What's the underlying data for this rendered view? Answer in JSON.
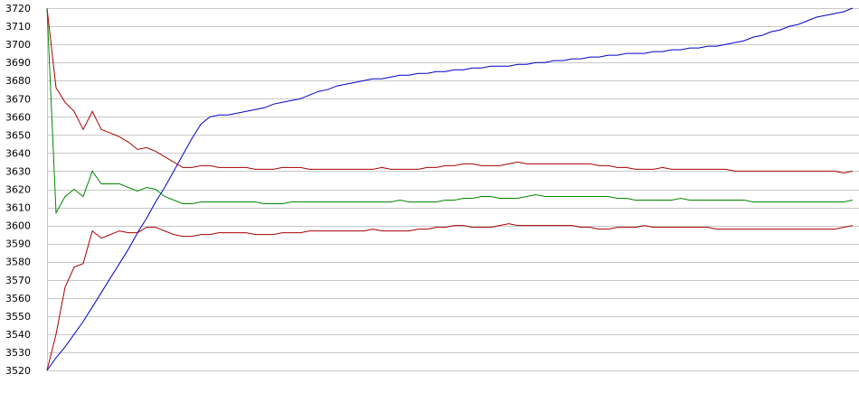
{
  "chart_data": {
    "type": "line",
    "title": "",
    "xlabel": "",
    "ylabel": "",
    "ylim": [
      3520,
      3720
    ],
    "yticks": [
      3520,
      3530,
      3540,
      3550,
      3560,
      3570,
      3580,
      3590,
      3600,
      3610,
      3620,
      3630,
      3640,
      3650,
      3660,
      3670,
      3680,
      3690,
      3700,
      3710,
      3720
    ],
    "grid": true,
    "legend": "none",
    "x": [
      0,
      1,
      2,
      3,
      4,
      5,
      6,
      7,
      8,
      9,
      10,
      11,
      12,
      13,
      14,
      15,
      16,
      17,
      18,
      19,
      20,
      21,
      22,
      23,
      24,
      25,
      26,
      27,
      28,
      29,
      30,
      31,
      32,
      33,
      34,
      35,
      36,
      37,
      38,
      39,
      40,
      41,
      42,
      43,
      44,
      45,
      46,
      47,
      48,
      49,
      50,
      51,
      52,
      53,
      54,
      55,
      56,
      57,
      58,
      59,
      60,
      61,
      62,
      63,
      64,
      65,
      66,
      67,
      68,
      69,
      70,
      71,
      72,
      73,
      74,
      75,
      76,
      77,
      78,
      79,
      80,
      81,
      82,
      83,
      84,
      85,
      86,
      87,
      88,
      89
    ],
    "series": [
      {
        "color": "#0000cc",
        "values": [
          3520,
          3527,
          3533,
          3540,
          3547,
          3555,
          3563,
          3571,
          3579,
          3587,
          3596,
          3604,
          3613,
          3621,
          3630,
          3639,
          3648,
          3656,
          3660,
          3661,
          3661,
          3662,
          3663,
          3664,
          3665,
          3667,
          3668,
          3669,
          3670,
          3672,
          3674,
          3675,
          3677,
          3678,
          3679,
          3680,
          3681,
          3681,
          3682,
          3683,
          3683,
          3684,
          3684,
          3685,
          3685,
          3686,
          3686,
          3687,
          3687,
          3688,
          3688,
          3688,
          3689,
          3689,
          3690,
          3690,
          3691,
          3691,
          3692,
          3692,
          3693,
          3693,
          3694,
          3694,
          3695,
          3695,
          3695,
          3696,
          3696,
          3697,
          3697,
          3698,
          3698,
          3699,
          3699,
          3700,
          3701,
          3702,
          3704,
          3705,
          3707,
          3708,
          3710,
          3711,
          3713,
          3715,
          3716,
          3717,
          3718,
          3720
        ]
      },
      {
        "color": "#aa0000",
        "values": [
          3720,
          3676,
          3668,
          3663,
          3653,
          3663,
          3653,
          3651,
          3649,
          3646,
          3642,
          3643,
          3641,
          3638,
          3635,
          3632,
          3632,
          3633,
          3633,
          3632,
          3632,
          3632,
          3632,
          3631,
          3631,
          3631,
          3632,
          3632,
          3632,
          3631,
          3631,
          3631,
          3631,
          3631,
          3631,
          3631,
          3631,
          3632,
          3631,
          3631,
          3631,
          3631,
          3632,
          3632,
          3633,
          3633,
          3634,
          3634,
          3633,
          3633,
          3633,
          3634,
          3635,
          3634,
          3634,
          3634,
          3634,
          3634,
          3634,
          3634,
          3634,
          3633,
          3633,
          3632,
          3632,
          3631,
          3631,
          3631,
          3632,
          3631,
          3631,
          3631,
          3631,
          3631,
          3631,
          3631,
          3630,
          3630,
          3630,
          3630,
          3630,
          3630,
          3630,
          3630,
          3630,
          3630,
          3630,
          3630,
          3629,
          3630
        ]
      },
      {
        "color": "#008800",
        "values": [
          3720,
          3607,
          3616,
          3620,
          3616,
          3630,
          3623,
          3623,
          3623,
          3621,
          3619,
          3621,
          3620,
          3616,
          3614,
          3612,
          3612,
          3613,
          3613,
          3613,
          3613,
          3613,
          3613,
          3613,
          3612,
          3612,
          3612,
          3613,
          3613,
          3613,
          3613,
          3613,
          3613,
          3613,
          3613,
          3613,
          3613,
          3613,
          3613,
          3614,
          3613,
          3613,
          3613,
          3613,
          3614,
          3614,
          3615,
          3615,
          3616,
          3616,
          3615,
          3615,
          3615,
          3616,
          3617,
          3616,
          3616,
          3616,
          3616,
          3616,
          3616,
          3616,
          3616,
          3615,
          3615,
          3614,
          3614,
          3614,
          3614,
          3614,
          3615,
          3614,
          3614,
          3614,
          3614,
          3614,
          3614,
          3614,
          3613,
          3613,
          3613,
          3613,
          3613,
          3613,
          3613,
          3613,
          3613,
          3613,
          3613,
          3614
        ]
      },
      {
        "color": "#aa0000",
        "values": [
          3520,
          3540,
          3566,
          3577,
          3579,
          3597,
          3593,
          3595,
          3597,
          3596,
          3596,
          3599,
          3599,
          3597,
          3595,
          3594,
          3594,
          3595,
          3595,
          3596,
          3596,
          3596,
          3596,
          3595,
          3595,
          3595,
          3596,
          3596,
          3596,
          3597,
          3597,
          3597,
          3597,
          3597,
          3597,
          3597,
          3598,
          3597,
          3597,
          3597,
          3597,
          3598,
          3598,
          3599,
          3599,
          3600,
          3600,
          3599,
          3599,
          3599,
          3600,
          3601,
          3600,
          3600,
          3600,
          3600,
          3600,
          3600,
          3600,
          3599,
          3599,
          3598,
          3598,
          3599,
          3599,
          3599,
          3600,
          3599,
          3599,
          3599,
          3599,
          3599,
          3599,
          3599,
          3598,
          3598,
          3598,
          3598,
          3598,
          3598,
          3598,
          3598,
          3598,
          3598,
          3598,
          3598,
          3598,
          3598,
          3599,
          3600
        ]
      }
    ]
  }
}
